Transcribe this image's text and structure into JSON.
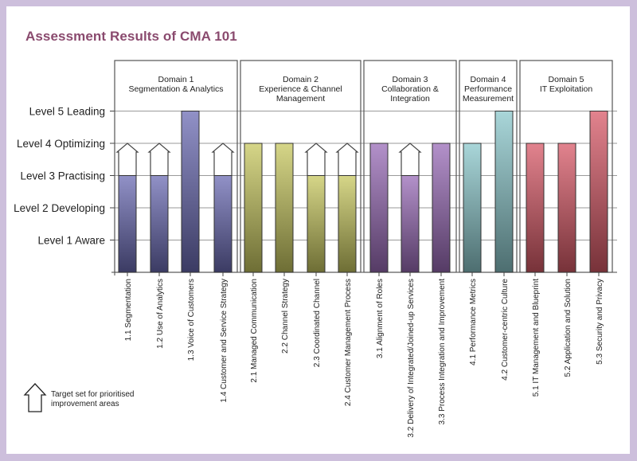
{
  "chart_data": {
    "type": "bar",
    "title": "Assessment Results of CMA 101",
    "levels": [
      "Level 1 Aware",
      "Level 2 Developing",
      "Level 3 Practising",
      "Level 4 Optimizing",
      "Level 5 Leading"
    ],
    "ylim": [
      0,
      5
    ],
    "domains": [
      {
        "label_lines": [
          "Domain 1",
          "Segmentation & Analytics"
        ],
        "color": "#6c6cb4",
        "items": [
          {
            "label": "1.1 Segmentation",
            "value": 3,
            "target": 4
          },
          {
            "label": "1.2 Use of Analytics",
            "value": 3,
            "target": 4
          },
          {
            "label": "1.3 Voice of Customers",
            "value": 5,
            "target": null
          },
          {
            "label": "1.4 Customer and Service Strategy",
            "value": 3,
            "target": 4
          }
        ]
      },
      {
        "label_lines": [
          "Domain 2",
          "Experience & Channel",
          "Management"
        ],
        "color": "#c8c860",
        "items": [
          {
            "label": "2.1 Managed Communication",
            "value": 4,
            "target": null
          },
          {
            "label": "2.2 Channel Strategy",
            "value": 4,
            "target": null
          },
          {
            "label": "2.3 Coordinated Channel",
            "value": 3,
            "target": 4
          },
          {
            "label": "2.4 Customer Management Process",
            "value": 3,
            "target": 4
          }
        ]
      },
      {
        "label_lines": [
          "Domain 3",
          "Collaboration &",
          "Integration"
        ],
        "color": "#9a6cb8",
        "items": [
          {
            "label": "3.1 Alignment of Roles",
            "value": 4,
            "target": null
          },
          {
            "label": "3.2 Delivery of Integrated/Joined-up Services",
            "value": 3,
            "target": 4
          },
          {
            "label": "3.3 Process Integration and Improvement",
            "value": 4,
            "target": null
          }
        ]
      },
      {
        "label_lines": [
          "Domain 4",
          "Performance",
          "Measurement"
        ],
        "color": "#8cc8cc",
        "items": [
          {
            "label": "4.1 Performance Metrics",
            "value": 4,
            "target": null
          },
          {
            "label": "4.2 Customer-centric Culture",
            "value": 5,
            "target": null
          }
        ]
      },
      {
        "label_lines": [
          "Domain 5",
          "IT Exploitation"
        ],
        "color": "#d85a68",
        "items": [
          {
            "label": "5.1 IT Management and Blueprint",
            "value": 4,
            "target": null
          },
          {
            "label": "5.2 Application and Solution",
            "value": 4,
            "target": null
          },
          {
            "label": "5.3 Security and Privacy",
            "value": 5,
            "target": null
          }
        ]
      }
    ],
    "legend": {
      "label": "Target set for prioritised improvement areas"
    }
  }
}
